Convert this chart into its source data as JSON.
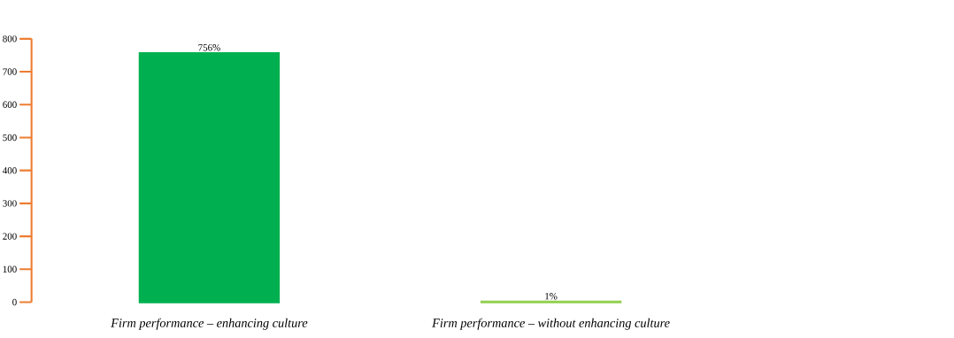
{
  "chart_data": {
    "type": "bar",
    "categories": [
      "Firm performance – enhancing culture",
      "Firm performance – without enhancing culture"
    ],
    "values": [
      756,
      1
    ],
    "colors": [
      "#00b050",
      "#92d050"
    ],
    "value_labels": [
      "756%",
      "1%"
    ],
    "ylim": [
      0,
      800
    ],
    "yticks": [
      0,
      100,
      200,
      300,
      400,
      500,
      600,
      700,
      800
    ]
  }
}
